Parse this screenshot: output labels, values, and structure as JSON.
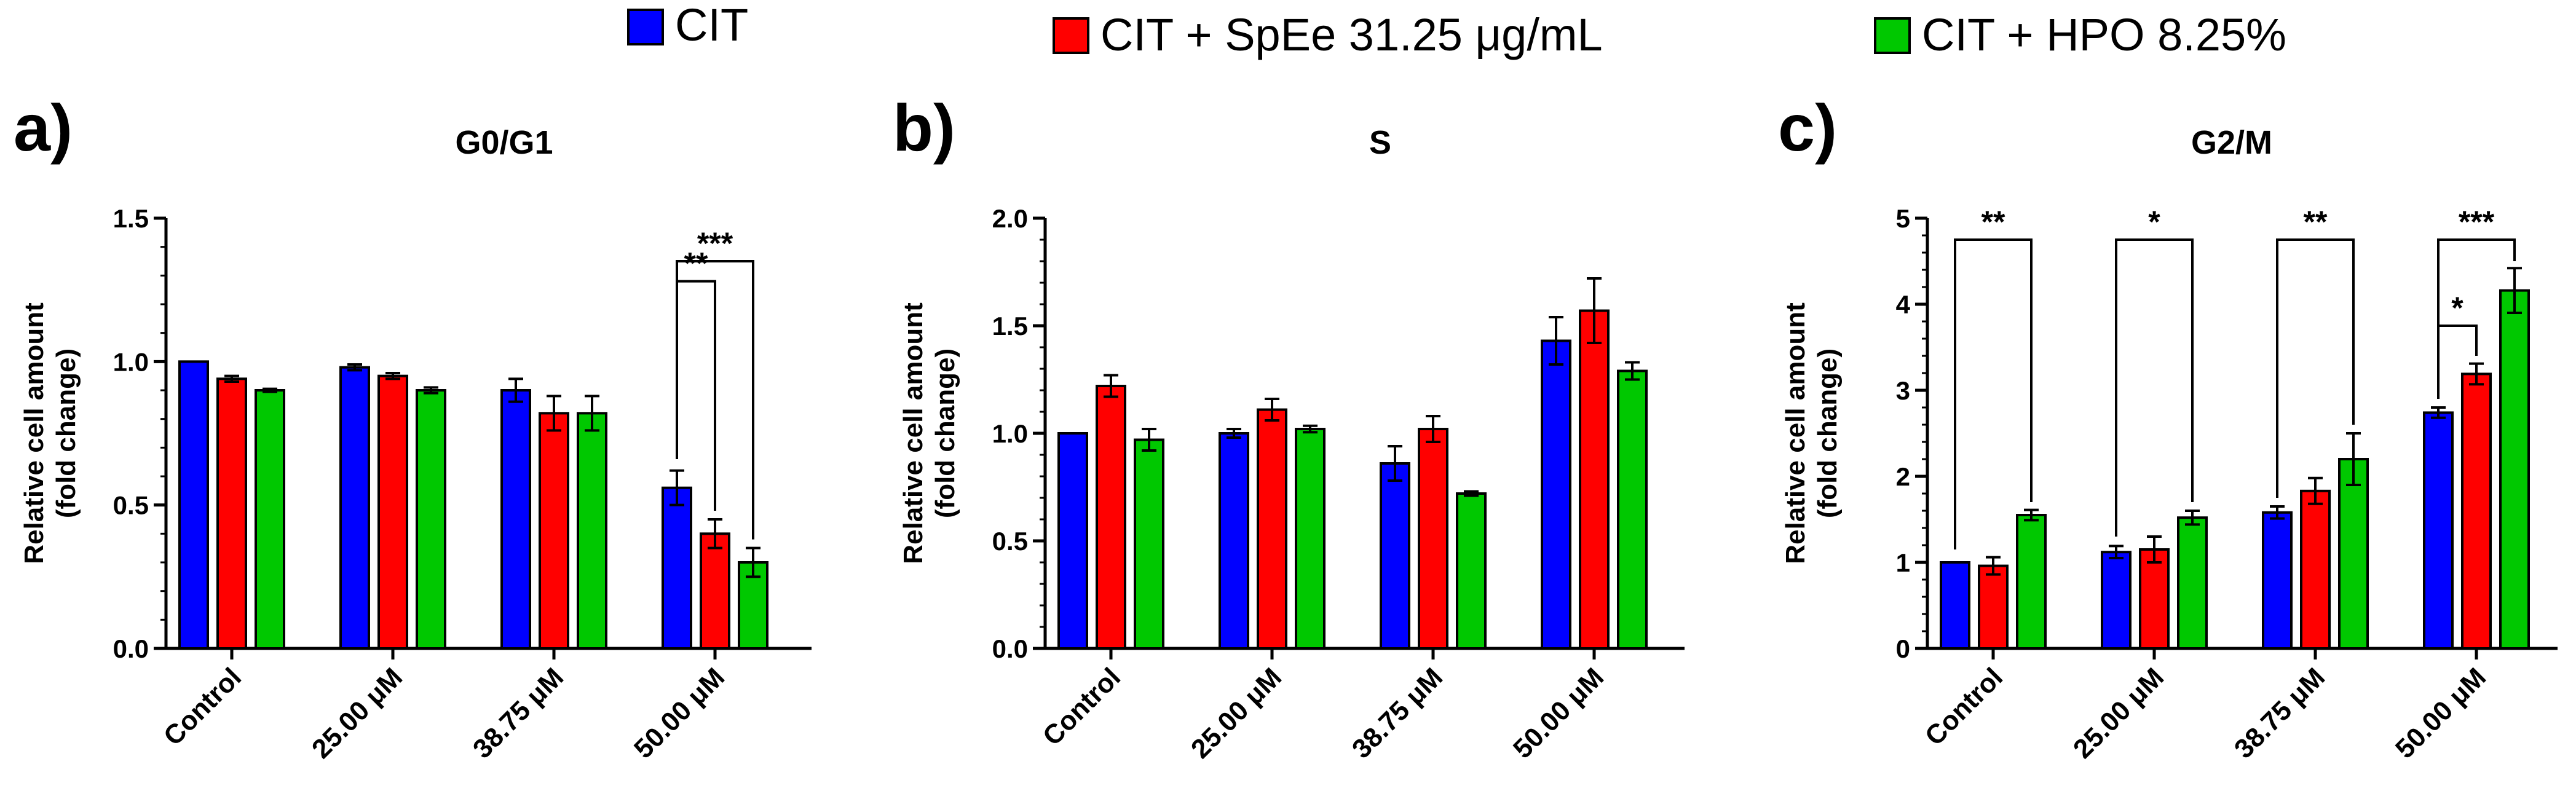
{
  "legend": [
    {
      "label": "CIT",
      "color": "#0000ff"
    },
    {
      "label": "CIT + SpEe 31.25 μg/mL",
      "color": "#ff0000"
    },
    {
      "label": "CIT + HPO 8.25%",
      "color": "#00c800"
    }
  ],
  "chart_data": [
    {
      "type": "bar",
      "panel": "a)",
      "title": "G0/G1",
      "ylabel_line1": "Relative cell amount",
      "ylabel_line2": "(fold change)",
      "ylim": [
        0,
        1.5
      ],
      "yticks": [
        0,
        0.5,
        1.0,
        1.5
      ],
      "ytick_labels": [
        "0.0",
        "0.5",
        "1.0",
        "1.5"
      ],
      "yminor": 0.1,
      "categories": [
        "Control",
        "25.00 μM",
        "38.75 μM",
        "50.00 μM"
      ],
      "series": [
        {
          "name": "CIT",
          "values": [
            1.0,
            0.98,
            0.9,
            0.56
          ],
          "errors": [
            0.0,
            0.01,
            0.04,
            0.06
          ]
        },
        {
          "name": "CIT + SpEe 31.25 μg/mL",
          "values": [
            0.94,
            0.95,
            0.82,
            0.4
          ],
          "errors": [
            0.01,
            0.01,
            0.06,
            0.05
          ]
        },
        {
          "name": "CIT + HPO 8.25%",
          "values": [
            0.9,
            0.9,
            0.82,
            0.3
          ],
          "errors": [
            0.005,
            0.01,
            0.06,
            0.05
          ]
        }
      ],
      "annotations": [
        {
          "category": 3,
          "from": 0,
          "to": 1,
          "label": "**",
          "y": 1.28,
          "left_y": 0.66,
          "right_y": 0.48
        },
        {
          "category": 3,
          "from": 0,
          "to": 2,
          "label": "***",
          "y": 1.35,
          "left_y": 0.66,
          "right_y": 0.38
        }
      ]
    },
    {
      "type": "bar",
      "panel": "b)",
      "title": "S",
      "ylabel_line1": "Relative cell amount",
      "ylabel_line2": "(fold change)",
      "ylim": [
        0,
        2.0
      ],
      "yticks": [
        0,
        0.5,
        1.0,
        1.5,
        2.0
      ],
      "ytick_labels": [
        "0.0",
        "0.5",
        "1.0",
        "1.5",
        "2.0"
      ],
      "yminor": 0.1,
      "categories": [
        "Control",
        "25.00 μM",
        "38.75 μM",
        "50.00 μM"
      ],
      "series": [
        {
          "name": "CIT",
          "values": [
            1.0,
            1.0,
            0.86,
            1.43
          ],
          "errors": [
            0.0,
            0.02,
            0.08,
            0.11
          ]
        },
        {
          "name": "CIT + SpEe 31.25 μg/mL",
          "values": [
            1.22,
            1.11,
            1.02,
            1.57
          ],
          "errors": [
            0.05,
            0.05,
            0.06,
            0.15
          ]
        },
        {
          "name": "CIT + HPO 8.25%",
          "values": [
            0.97,
            1.02,
            0.72,
            1.29
          ],
          "errors": [
            0.05,
            0.015,
            0.01,
            0.04
          ]
        }
      ],
      "annotations": []
    },
    {
      "type": "bar",
      "panel": "c)",
      "title": "G2/M",
      "ylabel_line1": "Relative cell amount",
      "ylabel_line2": "(fold change)",
      "ylim": [
        0,
        5
      ],
      "yticks": [
        0,
        1,
        2,
        3,
        4,
        5
      ],
      "ytick_labels": [
        "0",
        "1",
        "2",
        "3",
        "4",
        "5"
      ],
      "yminor": 0.2,
      "categories": [
        "Control",
        "25.00 μM",
        "38.75 μM",
        "50.00 μM"
      ],
      "series": [
        {
          "name": "CIT",
          "values": [
            1.0,
            1.12,
            1.58,
            2.74
          ],
          "errors": [
            0.0,
            0.07,
            0.07,
            0.06
          ]
        },
        {
          "name": "CIT + SpEe 31.25 μg/mL",
          "values": [
            0.96,
            1.15,
            1.83,
            3.19
          ],
          "errors": [
            0.1,
            0.15,
            0.15,
            0.12
          ]
        },
        {
          "name": "CIT + HPO 8.25%",
          "values": [
            1.55,
            1.52,
            2.2,
            4.16
          ],
          "errors": [
            0.06,
            0.08,
            0.3,
            0.26
          ]
        }
      ],
      "annotations": [
        {
          "category": 0,
          "from": 0,
          "to": 2,
          "label": "**",
          "y": 4.75,
          "left_y": 1.15,
          "right_y": 1.7
        },
        {
          "category": 1,
          "from": 0,
          "to": 2,
          "label": "*",
          "y": 4.75,
          "left_y": 1.3,
          "right_y": 1.7
        },
        {
          "category": 2,
          "from": 0,
          "to": 2,
          "label": "**",
          "y": 4.75,
          "left_y": 1.75,
          "right_y": 2.6
        },
        {
          "category": 3,
          "from": 0,
          "to": 1,
          "label": "*",
          "y": 3.75,
          "left_y": 2.9,
          "right_y": 3.4
        },
        {
          "category": 3,
          "from": 0,
          "to": 2,
          "label": "***",
          "y": 4.75,
          "left_y": 2.9,
          "right_y": 4.5
        }
      ]
    }
  ]
}
